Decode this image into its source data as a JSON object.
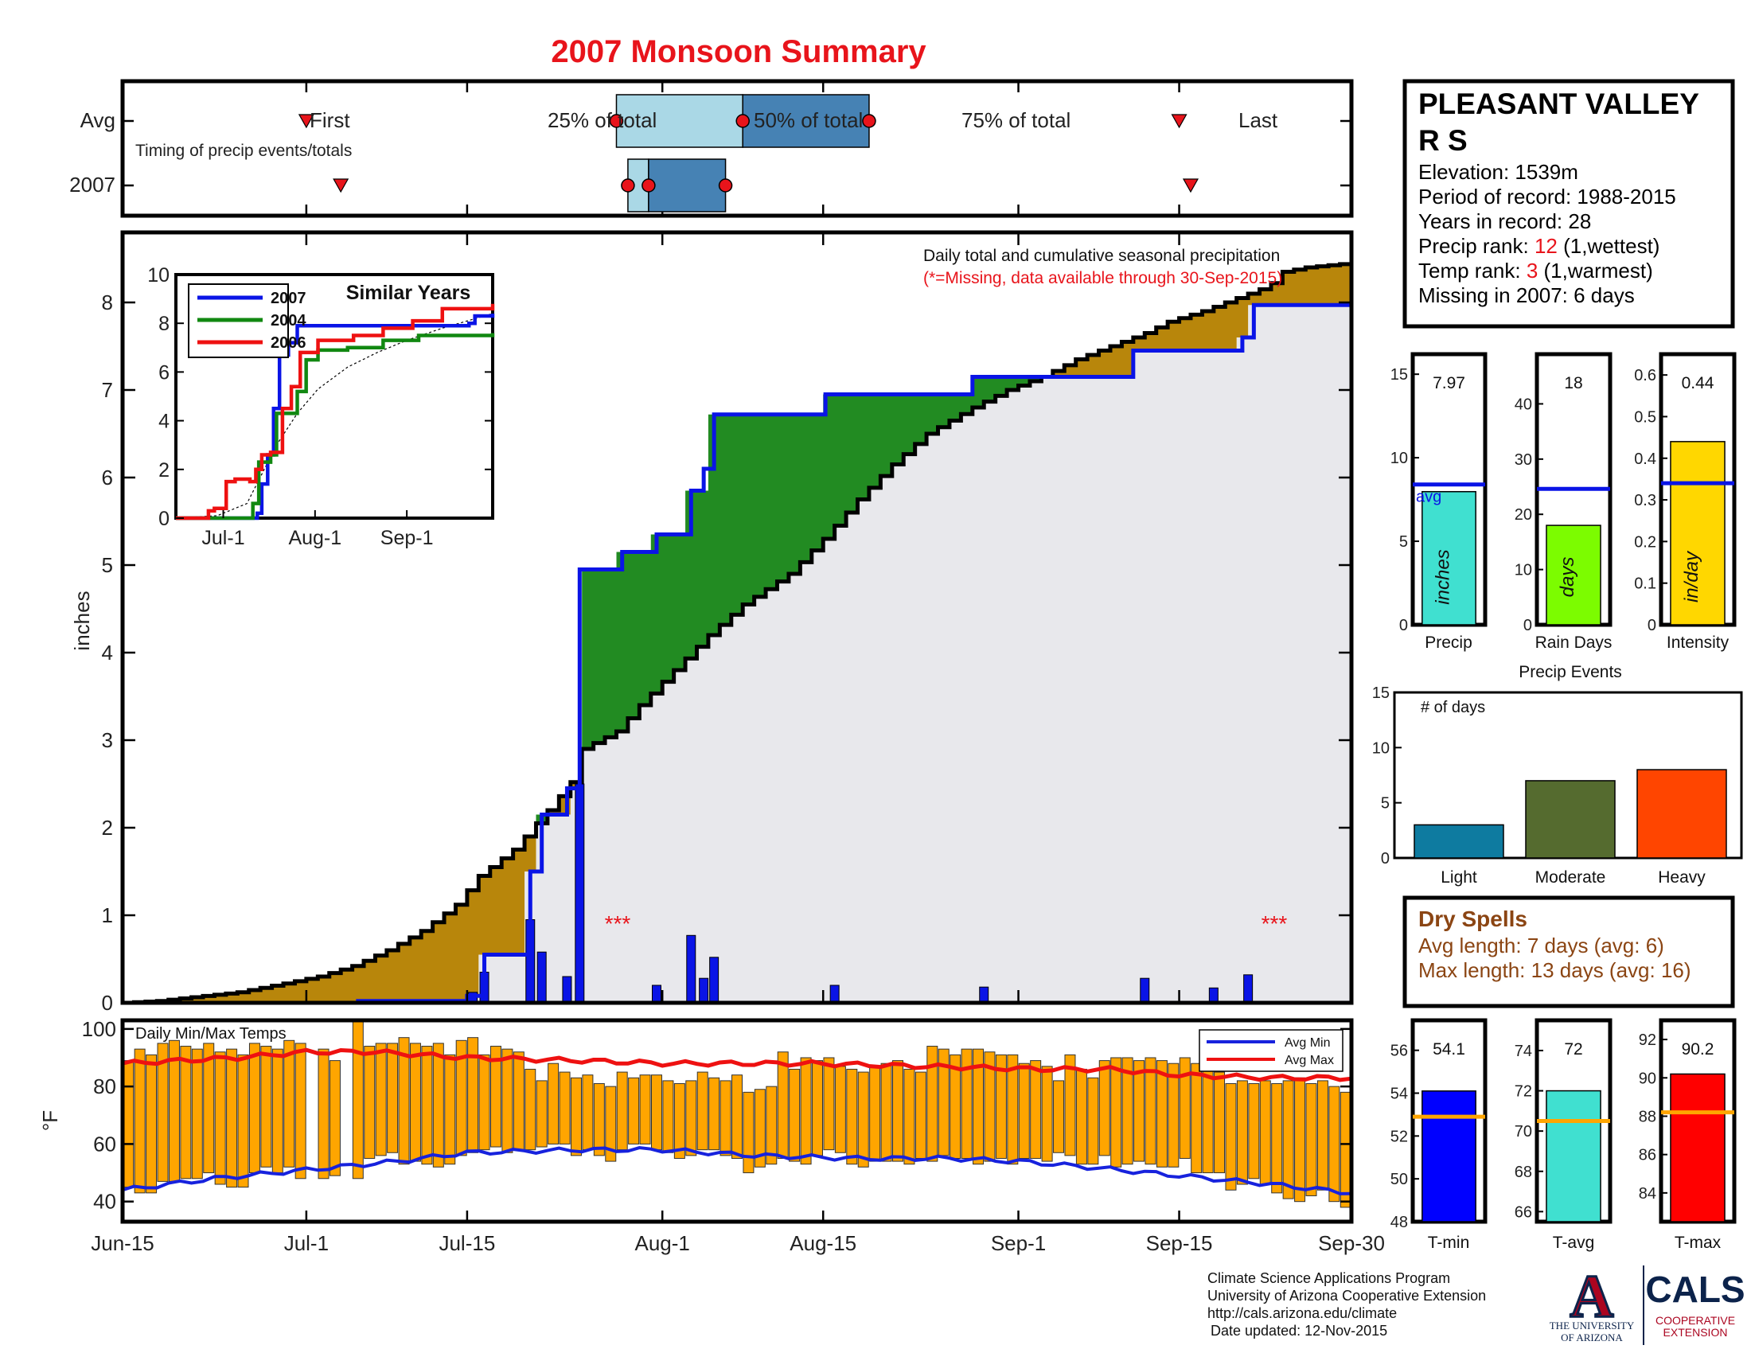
{
  "title": "2007 Monsoon Summary",
  "colors": {
    "title": "#e8141b",
    "precip_blue": "#0a14e6",
    "green_fill": "#228b22",
    "brown_fill": "#b8860b",
    "gray_fill": "#e8e8ec",
    "temp_bar": "#ffa500",
    "avg_max_line": "#ee1111",
    "avg_min_line": "#1722dd",
    "timing_light": "#aad8e6",
    "timing_dark": "#4682b4",
    "red_marker": "#e8141b",
    "light_event": "#0e7ba0",
    "moderate_event": "#556b2f",
    "heavy_event": "#ff4500",
    "precip_bar": "#40e0d0",
    "raindays_bar": "#7cfc00",
    "intensity_bar": "#ffd700",
    "tmin_bar": "#0000ff",
    "tavg_bar": "#40e0d0",
    "tmax_bar": "#ff0000",
    "tick_line": "#ffa500",
    "dry_spells_text": "#8b4513"
  },
  "timing": {
    "row_labels": [
      "Avg",
      "2007"
    ],
    "caption": "Timing of precip events/totals",
    "avg": {
      "first": "First",
      "q25": "25% of total",
      "q50": "50% of total",
      "q75": "75% of total",
      "last": "Last",
      "first_day": 16,
      "q25_day": 43,
      "q50_day": 54,
      "q75_day": 65,
      "last_day": 92
    },
    "y2007": {
      "first_day": 19,
      "q25_day": 44,
      "q50_day": 45.8,
      "q75_day": 52.5,
      "last_day": 93
    }
  },
  "station": {
    "name_line1": "PLEASANT VALLEY",
    "name_line2": "R S",
    "elevation": "Elevation: 1539m",
    "period": "Period of record: 1988-2015",
    "years": "Years in record: 28",
    "precip_rank_label": "Precip rank: ",
    "precip_rank_value": "12",
    "precip_rank_note": " (1,wettest)",
    "temp_rank_label": "Temp rank: ",
    "temp_rank_value": "3",
    "temp_rank_note": " (1,warmest)",
    "missing": "Missing in 2007: 6 days"
  },
  "main_chart": {
    "caption": "Daily total and cumulative seasonal precipitation",
    "missing_note": "(*=Missing, data available through 30-Sep-2015)",
    "missing_markers": [
      "***",
      "***"
    ],
    "missing_marker_days": [
      27.5,
      62.5
    ],
    "ylabel": "inches",
    "ylim": [
      0,
      8.8
    ],
    "yticks": [
      0,
      1,
      2,
      3,
      4,
      5,
      6,
      7,
      8
    ],
    "xticks": [
      {
        "day": 0,
        "label": "Jun-15"
      },
      {
        "day": 16,
        "label": "Jul-1"
      },
      {
        "day": 30,
        "label": "Jul-15"
      },
      {
        "day": 47,
        "label": "Aug-1"
      },
      {
        "day": 61,
        "label": "Aug-15"
      },
      {
        "day": 78,
        "label": "Sep-1"
      },
      {
        "day": 92,
        "label": "Sep-15"
      },
      {
        "day": 107,
        "label": "Sep-30"
      }
    ],
    "avg_cumulative": [
      [
        0,
        0
      ],
      [
        3,
        0.02
      ],
      [
        5,
        0.05
      ],
      [
        10,
        0.12
      ],
      [
        14,
        0.22
      ],
      [
        17,
        0.3
      ],
      [
        20,
        0.42
      ],
      [
        23,
        0.6
      ],
      [
        26,
        0.82
      ],
      [
        29,
        1.12
      ],
      [
        31,
        1.45
      ],
      [
        34,
        1.75
      ],
      [
        37,
        2.2
      ],
      [
        39,
        2.52
      ],
      [
        40,
        2.9
      ],
      [
        43,
        3.1
      ],
      [
        45,
        3.4
      ],
      [
        48,
        3.8
      ],
      [
        51,
        4.2
      ],
      [
        54,
        4.55
      ],
      [
        58,
        4.9
      ],
      [
        61,
        5.3
      ],
      [
        64,
        5.75
      ],
      [
        67,
        6.15
      ],
      [
        70,
        6.5
      ],
      [
        74,
        6.8
      ],
      [
        77,
        7.0
      ],
      [
        80,
        7.15
      ],
      [
        83,
        7.35
      ],
      [
        86,
        7.5
      ],
      [
        89,
        7.65
      ],
      [
        91,
        7.78
      ],
      [
        94,
        7.9
      ],
      [
        97,
        8.05
      ],
      [
        99,
        8.15
      ],
      [
        100,
        8.22
      ],
      [
        101,
        8.35
      ],
      [
        103,
        8.4
      ],
      [
        107,
        8.45
      ]
    ],
    "cumulative_2007": [
      [
        0,
        0
      ],
      [
        20.5,
        0
      ],
      [
        20.5,
        0.02
      ],
      [
        30,
        0.02
      ],
      [
        30,
        0.08
      ],
      [
        31.5,
        0.08
      ],
      [
        31.5,
        0.55
      ],
      [
        35.5,
        0.55
      ],
      [
        35.5,
        1.5
      ],
      [
        36.5,
        1.5
      ],
      [
        36.5,
        2.15
      ],
      [
        38.7,
        2.15
      ],
      [
        38.7,
        2.45
      ],
      [
        39.8,
        2.45
      ],
      [
        39.8,
        4.95
      ],
      [
        43.5,
        4.95
      ],
      [
        43.5,
        5.15
      ],
      [
        46.5,
        5.15
      ],
      [
        46.5,
        5.35
      ],
      [
        49.5,
        5.35
      ],
      [
        49.5,
        5.85
      ],
      [
        50.6,
        5.85
      ],
      [
        50.6,
        6.1
      ],
      [
        51.5,
        6.1
      ],
      [
        51.5,
        6.72
      ],
      [
        61.2,
        6.72
      ],
      [
        61.2,
        6.95
      ],
      [
        74,
        6.95
      ],
      [
        74,
        7.15
      ],
      [
        88,
        7.15
      ],
      [
        88,
        7.45
      ],
      [
        97.5,
        7.45
      ],
      [
        97.5,
        7.6
      ],
      [
        98.5,
        7.6
      ],
      [
        98.5,
        7.97
      ],
      [
        107,
        7.97
      ]
    ],
    "daily_bars": [
      [
        30.5,
        0.12
      ],
      [
        31.5,
        0.35
      ],
      [
        35.5,
        0.95
      ],
      [
        36.5,
        0.58
      ],
      [
        38.7,
        0.3
      ],
      [
        39.8,
        2.5
      ],
      [
        46.5,
        0.2
      ],
      [
        49.5,
        0.77
      ],
      [
        50.6,
        0.28
      ],
      [
        51.5,
        0.52
      ],
      [
        62,
        0.2
      ],
      [
        75,
        0.18
      ],
      [
        89,
        0.28
      ],
      [
        95,
        0.17
      ],
      [
        98,
        0.32
      ]
    ]
  },
  "inset": {
    "title": "Similar Years",
    "legend": [
      "2007",
      "2004",
      "2006"
    ],
    "series_colors": [
      "#0a14e6",
      "#118811",
      "#ee1111"
    ],
    "ylim": [
      0,
      10
    ],
    "yticks": [
      0,
      2,
      4,
      6,
      8,
      10
    ],
    "xticks": [
      {
        "day": 16,
        "label": "Jul-1"
      },
      {
        "day": 47,
        "label": "Aug-1"
      },
      {
        "day": 78,
        "label": "Sep-1"
      }
    ],
    "series": [
      [
        [
          0,
          0
        ],
        [
          26,
          0
        ],
        [
          27.5,
          0.2
        ],
        [
          29,
          1.4
        ],
        [
          31,
          2.6
        ],
        [
          33,
          4.5
        ],
        [
          35,
          6.7
        ],
        [
          38,
          7.2
        ],
        [
          41,
          7.9
        ],
        [
          46,
          7.9
        ],
        [
          58,
          7.9
        ],
        [
          80,
          7.9
        ],
        [
          90,
          7.9
        ],
        [
          99,
          8.0
        ],
        [
          101,
          8.3
        ],
        [
          107,
          8.4
        ]
      ],
      [
        [
          0,
          0
        ],
        [
          24,
          0
        ],
        [
          26,
          0.6
        ],
        [
          28,
          2.3
        ],
        [
          32,
          2.6
        ],
        [
          34,
          4.3
        ],
        [
          39,
          4.3
        ],
        [
          41,
          5.2
        ],
        [
          44,
          6.5
        ],
        [
          48,
          6.9
        ],
        [
          58,
          7.0
        ],
        [
          70,
          7.3
        ],
        [
          82,
          7.5
        ],
        [
          107,
          7.6
        ]
      ],
      [
        [
          0,
          0
        ],
        [
          9,
          0
        ],
        [
          11,
          0.3
        ],
        [
          13,
          0.4
        ],
        [
          17,
          1.5
        ],
        [
          20,
          1.6
        ],
        [
          25,
          1.5
        ],
        [
          27,
          2.0
        ],
        [
          29,
          2.6
        ],
        [
          32,
          2.7
        ],
        [
          36,
          4.5
        ],
        [
          39,
          5.4
        ],
        [
          42,
          6.8
        ],
        [
          48,
          7.3
        ],
        [
          60,
          7.5
        ],
        [
          70,
          7.8
        ],
        [
          80,
          8.1
        ],
        [
          90,
          8.6
        ],
        [
          107,
          8.8
        ]
      ]
    ],
    "avg": [
      [
        0,
        0
      ],
      [
        14,
        0.1
      ],
      [
        24,
        0.6
      ],
      [
        29,
        1.8
      ],
      [
        34,
        3.0
      ],
      [
        41,
        4.3
      ],
      [
        48,
        5.3
      ],
      [
        58,
        6.2
      ],
      [
        68,
        6.8
      ],
      [
        78,
        7.3
      ],
      [
        90,
        7.8
      ],
      [
        107,
        8.4
      ]
    ]
  },
  "temps": {
    "title": "Daily Min/Max Temps",
    "ylabel": "°F",
    "ylim": [
      33,
      103
    ],
    "yticks": [
      40,
      60,
      80,
      100
    ],
    "legend": [
      "Avg Min",
      "Avg Max"
    ],
    "avg_max": [
      [
        0,
        88
      ],
      [
        10,
        90
      ],
      [
        16,
        92
      ],
      [
        22,
        92
      ],
      [
        30,
        90
      ],
      [
        40,
        89
      ],
      [
        47,
        88
      ],
      [
        60,
        88
      ],
      [
        70,
        87
      ],
      [
        80,
        86
      ],
      [
        86,
        86
      ],
      [
        92,
        84
      ],
      [
        100,
        83
      ],
      [
        107,
        83
      ]
    ],
    "avg_min": [
      [
        0,
        44
      ],
      [
        8,
        48
      ],
      [
        16,
        51
      ],
      [
        24,
        54
      ],
      [
        30,
        57
      ],
      [
        40,
        58
      ],
      [
        47,
        58
      ],
      [
        55,
        56
      ],
      [
        64,
        55
      ],
      [
        72,
        55
      ],
      [
        78,
        54
      ],
      [
        84,
        52
      ],
      [
        92,
        49
      ],
      [
        100,
        46
      ],
      [
        107,
        43
      ]
    ],
    "bars": [
      [
        0.5,
        89,
        45
      ],
      [
        1.5,
        93,
        43
      ],
      [
        2.5,
        91,
        43
      ],
      [
        3.5,
        95,
        47
      ],
      [
        4.5,
        96,
        47
      ],
      [
        5.5,
        94,
        48
      ],
      [
        6.5,
        93,
        48
      ],
      [
        7.5,
        95,
        50
      ],
      [
        8.5,
        92,
        46
      ],
      [
        9.5,
        93,
        45
      ],
      [
        10.5,
        91,
        45
      ],
      [
        11.5,
        95,
        50
      ],
      [
        12.5,
        94,
        52
      ],
      [
        13.5,
        93,
        50
      ],
      [
        14.5,
        96,
        52
      ],
      [
        15.5,
        95,
        48
      ],
      [
        17.5,
        93,
        48
      ],
      [
        18.5,
        89,
        49
      ],
      [
        20.5,
        103,
        48
      ],
      [
        21.5,
        94,
        55
      ],
      [
        22.5,
        95,
        56
      ],
      [
        23.5,
        95,
        57
      ],
      [
        24.5,
        97,
        53
      ],
      [
        25.5,
        95,
        54
      ],
      [
        26.5,
        94,
        53
      ],
      [
        27.5,
        95,
        52
      ],
      [
        28.5,
        91,
        53
      ],
      [
        29.5,
        96,
        56
      ],
      [
        30.5,
        97,
        57
      ],
      [
        31.5,
        91,
        58
      ],
      [
        32.5,
        94,
        59
      ],
      [
        33.5,
        93,
        57
      ],
      [
        34.5,
        92,
        58
      ],
      [
        35.5,
        86,
        58
      ],
      [
        36.5,
        82,
        59
      ],
      [
        37.5,
        88,
        60
      ],
      [
        38.5,
        85,
        60
      ],
      [
        39.5,
        83,
        56
      ],
      [
        40.5,
        84,
        58
      ],
      [
        41.5,
        81,
        56
      ],
      [
        42.5,
        80,
        54
      ],
      [
        43.5,
        85,
        58
      ],
      [
        44.5,
        83,
        60
      ],
      [
        45.5,
        84,
        60
      ],
      [
        46.5,
        84,
        58
      ],
      [
        47.5,
        82,
        57
      ],
      [
        48.5,
        81,
        55
      ],
      [
        49.5,
        82,
        56
      ],
      [
        50.5,
        85,
        58
      ],
      [
        51.5,
        83,
        58
      ],
      [
        52.5,
        82,
        56
      ],
      [
        53.5,
        84,
        55
      ],
      [
        54.5,
        78,
        50
      ],
      [
        55.5,
        79,
        52
      ],
      [
        56.5,
        80,
        53
      ],
      [
        57.5,
        92,
        55
      ],
      [
        58.5,
        86,
        54
      ],
      [
        59.5,
        90,
        53
      ],
      [
        60.5,
        89,
        56
      ],
      [
        61.5,
        90,
        58
      ],
      [
        62.5,
        87,
        57
      ],
      [
        63.5,
        86,
        53
      ],
      [
        64.5,
        85,
        52
      ],
      [
        65.5,
        87,
        54
      ],
      [
        66.5,
        88,
        54
      ],
      [
        67.5,
        89,
        54
      ],
      [
        68.5,
        86,
        53
      ],
      [
        69.5,
        85,
        55
      ],
      [
        70.5,
        94,
        54
      ],
      [
        71.5,
        93,
        56
      ],
      [
        72.5,
        91,
        55
      ],
      [
        73.5,
        93,
        55
      ],
      [
        74.5,
        93,
        53
      ],
      [
        75.5,
        92,
        54
      ],
      [
        76.5,
        91,
        55
      ],
      [
        77.5,
        91,
        53
      ],
      [
        78.5,
        88,
        55
      ],
      [
        79.5,
        89,
        55
      ],
      [
        80.5,
        87,
        54
      ],
      [
        81.5,
        82,
        57
      ],
      [
        82.5,
        91,
        56
      ],
      [
        83.5,
        86,
        53
      ],
      [
        84.5,
        83,
        53
      ],
      [
        85.5,
        89,
        56
      ],
      [
        86.5,
        90,
        52
      ],
      [
        87.5,
        90,
        53
      ],
      [
        88.5,
        89,
        54
      ],
      [
        89.5,
        90,
        53
      ],
      [
        90.5,
        89,
        52
      ],
      [
        91.5,
        88,
        52
      ],
      [
        92.5,
        90,
        55
      ],
      [
        93.5,
        88,
        50
      ],
      [
        94.5,
        86,
        50
      ],
      [
        95.5,
        85,
        50
      ],
      [
        96.5,
        81,
        44
      ],
      [
        97.5,
        82,
        46
      ],
      [
        98.5,
        81,
        48
      ],
      [
        99.5,
        82,
        46
      ],
      [
        100.5,
        81,
        43
      ],
      [
        101.5,
        82,
        41
      ],
      [
        102.5,
        83,
        40
      ],
      [
        103.5,
        81,
        42
      ],
      [
        104.5,
        82,
        44
      ],
      [
        105.5,
        80,
        40
      ],
      [
        106.5,
        78,
        38
      ]
    ]
  },
  "summary_bars": {
    "precip": {
      "value_label": "7.97",
      "value": 7.97,
      "avg": 8.4,
      "ylim": [
        0,
        16.2
      ],
      "yticks": [
        0,
        5,
        10,
        15
      ],
      "unit_label": "inches",
      "avg_label": "avg",
      "xlabel": "Precip"
    },
    "rain_days": {
      "value_label": "18",
      "value": 18,
      "avg": 24.6,
      "ylim": [
        0,
        49
      ],
      "yticks": [
        0,
        10,
        20,
        30,
        40
      ],
      "unit_label": "days",
      "xlabel": "Rain Days"
    },
    "intensity": {
      "value_label": "0.44",
      "value": 0.44,
      "avg": 0.34,
      "ylim": [
        0,
        0.65
      ],
      "yticks": [
        0,
        0.1,
        0.2,
        0.3,
        0.4,
        0.5,
        0.6
      ],
      "unit_label": "in/day",
      "xlabel": "Intensity"
    }
  },
  "precip_events": {
    "title": "Precip Events",
    "ylabel": "# of days",
    "ylim": [
      0,
      15
    ],
    "yticks": [
      0,
      5,
      10,
      15
    ],
    "categories": [
      "Light",
      "Moderate",
      "Heavy"
    ],
    "values": [
      3,
      7,
      8
    ]
  },
  "dry_spells": {
    "title": "Dry Spells",
    "avg_length": "Avg length: 7 days (avg: 6)",
    "max_length": "Max length: 13 days (avg: 16)"
  },
  "temp_summary": {
    "tmin": {
      "value_label": "54.1",
      "value": 54.1,
      "avg": 52.9,
      "ylim": [
        48,
        57.4
      ],
      "yticks": [
        48,
        50,
        52,
        54,
        56
      ],
      "xlabel": "T-min"
    },
    "tavg": {
      "value_label": "72",
      "value": 72,
      "avg": 70.5,
      "ylim": [
        65.5,
        75.5
      ],
      "yticks": [
        66,
        68,
        70,
        72,
        74
      ],
      "xlabel": "T-avg"
    },
    "tmax": {
      "value_label": "90.2",
      "value": 90.2,
      "avg": 88.2,
      "ylim": [
        82.5,
        93
      ],
      "yticks": [
        84,
        86,
        88,
        90,
        92
      ],
      "xlabel": "T-max"
    }
  },
  "footer": {
    "line1": "Climate Science Applications Program",
    "line2": "University of Arizona Cooperative Extension",
    "line3": "http://cals.arizona.edu/climate",
    "line4": "Date updated: 12-Nov-2015",
    "ua_logo_letter": "A",
    "ua_logo_text1": "THE UNIVERSITY",
    "ua_logo_text2": "OF ARIZONA",
    "cals_logo": "CALS",
    "cals_sub1": "COOPERATIVE",
    "cals_sub2": "EXTENSION"
  }
}
